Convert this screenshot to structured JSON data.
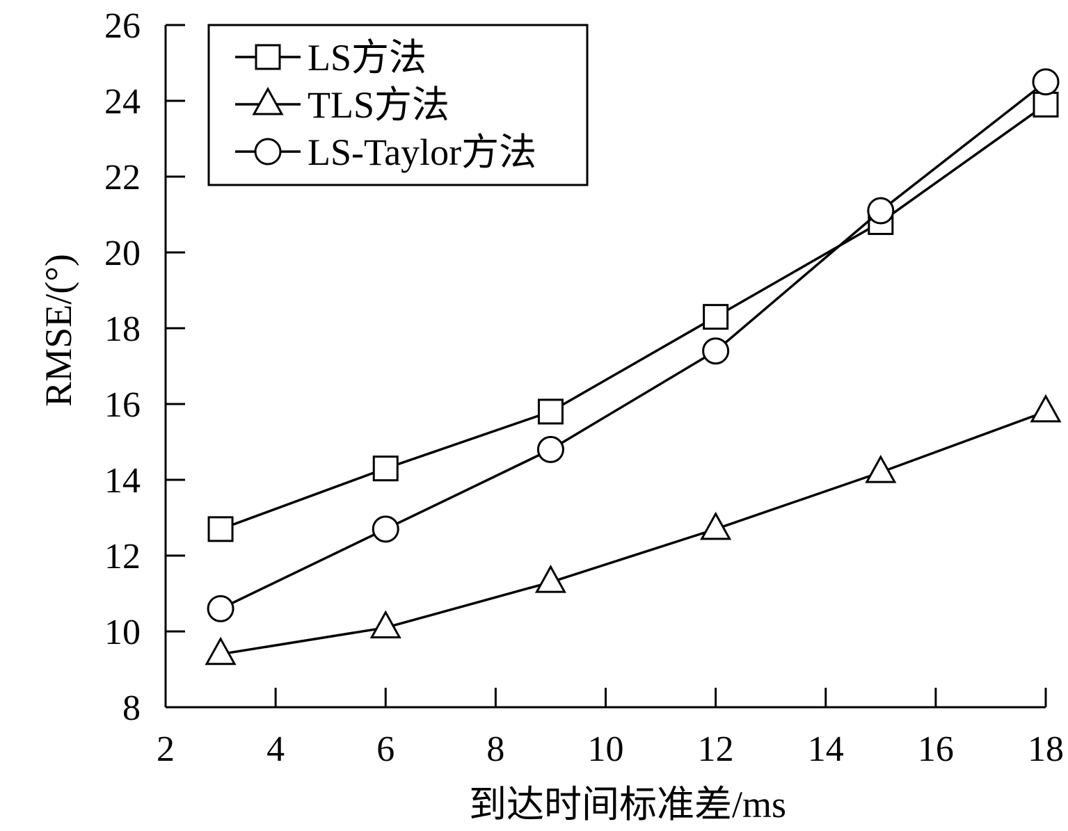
{
  "chart_data": {
    "type": "line",
    "title": "",
    "xlabel": "到达时间标准差/ms",
    "ylabel": "RMSE/(°)",
    "xlim": [
      2,
      18
    ],
    "ylim": [
      8,
      26
    ],
    "xticks": [
      "2",
      "4",
      "6",
      "8",
      "10",
      "12",
      "14",
      "16",
      "18"
    ],
    "yticks": [
      "8",
      "10",
      "12",
      "14",
      "16",
      "18",
      "20",
      "22",
      "24",
      "26"
    ],
    "grid": false,
    "legend_position": "top-left",
    "x": [
      3,
      6,
      9,
      12,
      15,
      18
    ],
    "series": [
      {
        "name": "LS方法",
        "marker": "square",
        "values": [
          12.7,
          14.3,
          15.8,
          18.3,
          20.8,
          23.9
        ]
      },
      {
        "name": "TLS方法",
        "marker": "triangle",
        "values": [
          9.4,
          10.1,
          11.3,
          12.7,
          14.2,
          15.8
        ]
      },
      {
        "name": "LS-Taylor方法",
        "marker": "circle",
        "values": [
          10.6,
          12.7,
          14.8,
          17.4,
          21.1,
          24.5
        ]
      }
    ],
    "colors": {
      "line": "#000000",
      "marker_fill": "#ffffff"
    }
  }
}
